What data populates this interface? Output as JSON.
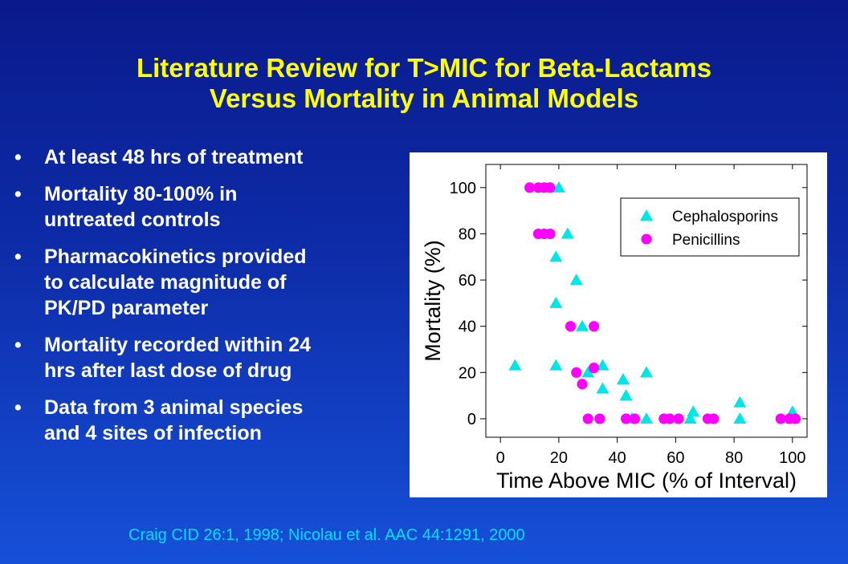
{
  "slide": {
    "title_line1": "Literature Review for T>MIC for Beta-Lactams",
    "title_line2": "Versus Mortality in Animal Models",
    "bullet_symbol": "•",
    "bullets": [
      {
        "lines": [
          "At least 48 hrs of treatment"
        ]
      },
      {
        "lines": [
          "Mortality 80-100% in",
          "untreated controls"
        ]
      },
      {
        "lines": [
          "Pharmacokinetics provided",
          "to calculate magnitude of",
          "PK/PD parameter"
        ]
      },
      {
        "lines": [
          "Mortality recorded within 24",
          "hrs after last dose of drug"
        ]
      },
      {
        "lines": [
          "Data from 3 animal species",
          "and 4 sites of infection"
        ]
      }
    ],
    "citation": "Craig CID 26:1, 1998;  Nicolau et al.  AAC 44:1291, 2000"
  },
  "chart_data": {
    "type": "scatter",
    "xlabel": "Time Above MIC (% of Interval)",
    "ylabel": "Mortality (%)",
    "xlim": [
      -5,
      105
    ],
    "ylim": [
      -8,
      110
    ],
    "xticks": [
      0,
      20,
      40,
      60,
      80,
      100
    ],
    "yticks": [
      0,
      20,
      40,
      60,
      80,
      100
    ],
    "grid": false,
    "legend_position": "top-right",
    "background_color": "#ffffff",
    "series": [
      {
        "name": "Cephalosporins",
        "marker": "triangle",
        "color": "#00e5e5",
        "points": [
          [
            5,
            23
          ],
          [
            19,
            23
          ],
          [
            19,
            50
          ],
          [
            19,
            70
          ],
          [
            20,
            100
          ],
          [
            23,
            80
          ],
          [
            26,
            60
          ],
          [
            28,
            40
          ],
          [
            30,
            20
          ],
          [
            35,
            13
          ],
          [
            35,
            23
          ],
          [
            42,
            17
          ],
          [
            43,
            10
          ],
          [
            45,
            0
          ],
          [
            50,
            0
          ],
          [
            50,
            20
          ],
          [
            65,
            0
          ],
          [
            66,
            3
          ],
          [
            82,
            0
          ],
          [
            82,
            7
          ],
          [
            100,
            0
          ],
          [
            100,
            3
          ]
        ]
      },
      {
        "name": "Penicillins",
        "marker": "circle",
        "color": "#ff00ff",
        "points": [
          [
            10,
            100
          ],
          [
            13,
            100
          ],
          [
            15,
            100
          ],
          [
            17,
            100
          ],
          [
            13,
            80
          ],
          [
            15,
            80
          ],
          [
            17,
            80
          ],
          [
            24,
            40
          ],
          [
            32,
            40
          ],
          [
            26,
            20
          ],
          [
            28,
            15
          ],
          [
            32,
            22
          ],
          [
            30,
            0
          ],
          [
            34,
            0
          ],
          [
            43,
            0
          ],
          [
            46,
            0
          ],
          [
            56,
            0
          ],
          [
            58,
            0
          ],
          [
            61,
            0
          ],
          [
            71,
            0
          ],
          [
            73,
            0
          ],
          [
            96,
            0
          ],
          [
            99,
            0
          ],
          [
            101,
            0
          ]
        ]
      }
    ]
  }
}
